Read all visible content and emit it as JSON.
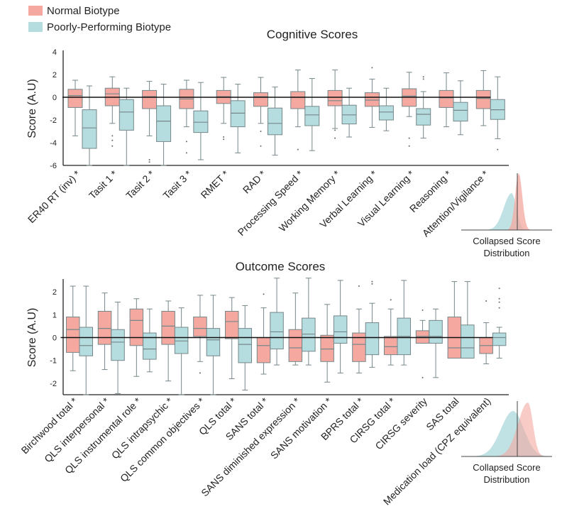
{
  "legend": {
    "items": [
      {
        "label": "Normal Biotype",
        "color": "#F4A8A0"
      },
      {
        "label": "Poorly-Performing Biotype",
        "color": "#B5DDE0"
      }
    ],
    "placement": "top-left"
  },
  "chart_data": [
    {
      "type": "box",
      "title": "Cognitive Scores",
      "ylabel": "Score (A.U)",
      "xlabel": "",
      "ylim": [
        -6,
        4
      ],
      "yticks": [
        4,
        2,
        0,
        -2,
        -4,
        -6
      ],
      "reference_line": 0,
      "grid": false,
      "categories": [
        "ER40 RT (inv) *",
        "Tasit 1 *",
        "Tasit 2 *",
        "Tasit 3 *",
        "RMET *",
        "RAD *",
        "Processing Speed *",
        "Working Memory *",
        "Verbal Learning *",
        "Visual Learning *",
        "Reasoning *",
        "Attention/Vigilance *"
      ],
      "series": [
        {
          "name": "Normal Biotype",
          "boxes": [
            {
              "min": -3.4,
              "q1": -0.9,
              "median": 0.15,
              "q3": 0.7,
              "max": 1.5,
              "outliers": []
            },
            {
              "min": -2.3,
              "q1": -0.75,
              "median": 0.3,
              "q3": 0.8,
              "max": 1.8,
              "outliers": [
                -3.4,
                -3.8,
                -4.3
              ]
            },
            {
              "min": -3.4,
              "q1": -1.0,
              "median": 0.05,
              "q3": 0.6,
              "max": 1.4,
              "outliers": [
                -5.5,
                -5.7
              ]
            },
            {
              "min": -2.6,
              "q1": -1.0,
              "median": -0.15,
              "q3": 0.7,
              "max": 1.5,
              "outliers": [
                -3.9,
                -4.9
              ]
            },
            {
              "min": -2.3,
              "q1": -0.55,
              "median": 0.05,
              "q3": 0.6,
              "max": 1.75,
              "outliers": [
                -3.5,
                -3.7
              ]
            },
            {
              "min": -2.3,
              "q1": -0.8,
              "median": 0.05,
              "q3": 0.4,
              "max": 1.75,
              "outliers": [
                -3.0,
                -4.3
              ]
            },
            {
              "min": -2.6,
              "q1": -1.0,
              "median": 0.0,
              "q3": 0.5,
              "max": 2.4,
              "outliers": [
                -4.6
              ]
            },
            {
              "min": -2.75,
              "q1": -0.75,
              "median": -0.3,
              "q3": 0.6,
              "max": 2.4,
              "outliers": [
                -2.9,
                -3.6
              ]
            },
            {
              "min": -2.65,
              "q1": -0.8,
              "median": -0.25,
              "q3": 0.4,
              "max": 1.6,
              "outliers": [
                2.6
              ]
            },
            {
              "min": -1.7,
              "q1": -0.8,
              "median": 0.1,
              "q3": 0.75,
              "max": 2.2,
              "outliers": [
                -3.6,
                -4.3
              ]
            },
            {
              "min": -2.6,
              "q1": -0.9,
              "median": -0.05,
              "q3": 0.6,
              "max": 2.15,
              "outliers": []
            },
            {
              "min": -2.5,
              "q1": -1.0,
              "median": -0.1,
              "q3": 0.6,
              "max": 2.35,
              "outliers": []
            }
          ]
        },
        {
          "name": "Poorly-Performing Biotype",
          "boxes": [
            {
              "min": -6.0,
              "q1": -4.5,
              "median": -2.7,
              "q3": -1.1,
              "max": 1.0,
              "outliers": []
            },
            {
              "min": -6.0,
              "q1": -2.9,
              "median": -1.3,
              "q3": -0.2,
              "max": 0.8,
              "outliers": []
            },
            {
              "min": -6.0,
              "q1": -3.9,
              "median": -2.1,
              "q3": -0.75,
              "max": 1.15,
              "outliers": []
            },
            {
              "min": -5.5,
              "q1": -3.1,
              "median": -2.2,
              "q3": -1.2,
              "max": 1.3,
              "outliers": []
            },
            {
              "min": -4.9,
              "q1": -2.6,
              "median": -1.4,
              "q3": -0.3,
              "max": 1.15,
              "outliers": []
            },
            {
              "min": -5.1,
              "q1": -3.3,
              "median": -2.3,
              "q3": -0.95,
              "max": 0.9,
              "outliers": []
            },
            {
              "min": -4.7,
              "q1": -2.5,
              "median": -1.55,
              "q3": -0.8,
              "max": 1.65,
              "outliers": []
            },
            {
              "min": -3.5,
              "q1": -2.35,
              "median": -1.55,
              "q3": -0.7,
              "max": 0.8,
              "outliers": []
            },
            {
              "min": -2.95,
              "q1": -2.0,
              "median": -1.3,
              "q3": -0.75,
              "max": 0.8,
              "outliers": []
            },
            {
              "min": -3.6,
              "q1": -2.45,
              "median": -1.5,
              "q3": -1.0,
              "max": 0.5,
              "outliers": [
                1.6,
                1.8
              ]
            },
            {
              "min": -3.3,
              "q1": -2.1,
              "median": -1.15,
              "q3": -0.45,
              "max": 1.45,
              "outliers": []
            },
            {
              "min": -3.65,
              "q1": -1.95,
              "median": -1.1,
              "q3": -0.2,
              "max": 1.8,
              "outliers": [
                -4.6
              ]
            }
          ]
        }
      ],
      "inset": {
        "label": "Collapsed Score Distribution",
        "type": "density"
      }
    },
    {
      "type": "box",
      "title": "Outcome Scores",
      "ylabel": "Score (A.U)",
      "xlabel": "",
      "ylim": [
        -2.5,
        2.5
      ],
      "yticks": [
        2,
        1,
        0,
        -1,
        -2
      ],
      "reference_line": 0,
      "grid": false,
      "categories": [
        "Birchwood total *",
        "QLS interpersonal *",
        "QLS instrumental role *",
        "QLS intrapsychic *",
        "QLS common objectives *",
        "QLS total *",
        "SANS total *",
        "SANS diminished expression *",
        "SANS motivation *",
        "BPRS total *",
        "CIRSG total *",
        "CIRSG severity",
        "SAS total",
        "Medication load (CPZ equivalent)"
      ],
      "series": [
        {
          "name": "Normal Biotype",
          "boxes": [
            {
              "min": -1.45,
              "q1": -0.65,
              "median": 0.35,
              "q3": 0.9,
              "max": 2.25,
              "outliers": []
            },
            {
              "min": -1.4,
              "q1": -0.3,
              "median": 0.4,
              "q3": 1.15,
              "max": 1.95,
              "outliers": []
            },
            {
              "min": -1.7,
              "q1": -0.35,
              "median": 0.75,
              "q3": 1.25,
              "max": 1.7,
              "outliers": []
            },
            {
              "min": -1.9,
              "q1": -0.3,
              "median": 0.5,
              "q3": 1.15,
              "max": 1.6,
              "outliers": []
            },
            {
              "min": -1.05,
              "q1": 0.05,
              "median": 0.4,
              "q3": 0.9,
              "max": 1.85,
              "outliers": [
                -1.55
              ]
            },
            {
              "min": -1.8,
              "q1": -0.05,
              "median": 0.7,
              "q3": 1.15,
              "max": 1.75,
              "outliers": []
            },
            {
              "min": -1.6,
              "q1": -1.1,
              "median": -0.35,
              "q3": 0.0,
              "max": 1.3,
              "outliers": [
                1.9
              ]
            },
            {
              "min": -1.2,
              "q1": -1.05,
              "median": -0.45,
              "q3": 0.35,
              "max": 1.95,
              "outliers": []
            },
            {
              "min": -1.95,
              "q1": -1.05,
              "median": -0.5,
              "q3": 0.1,
              "max": 1.45,
              "outliers": []
            },
            {
              "min": -1.55,
              "q1": -1.05,
              "median": -0.3,
              "q3": 0.2,
              "max": 1.25,
              "outliers": [
                2.25
              ]
            },
            {
              "min": -1.2,
              "q1": -0.75,
              "median": -0.4,
              "q3": 0.05,
              "max": 1.25,
              "outliers": [
                1.65
              ]
            },
            {
              "min": -0.25,
              "q1": -0.25,
              "median": 0.05,
              "q3": 0.3,
              "max": 0.75,
              "outliers": [
                1.2,
                -1.75
              ]
            },
            {
              "min": -0.9,
              "q1": -0.9,
              "median": -0.45,
              "q3": 0.9,
              "max": 2.45,
              "outliers": []
            },
            {
              "min": -1.15,
              "q1": -0.7,
              "median": -0.35,
              "q3": 0.0,
              "max": 0.65,
              "outliers": [
                1.6
              ]
            }
          ]
        },
        {
          "name": "Poorly-Performing Biotype",
          "boxes": [
            {
              "min": -2.5,
              "q1": -0.8,
              "median": -0.35,
              "q3": 0.45,
              "max": 2.25,
              "outliers": []
            },
            {
              "min": -2.45,
              "q1": -1.0,
              "median": -0.2,
              "q3": 0.35,
              "max": 1.55,
              "outliers": []
            },
            {
              "min": -1.5,
              "q1": -0.95,
              "median": -0.5,
              "q3": 0.2,
              "max": 1.25,
              "outliers": []
            },
            {
              "min": -2.5,
              "q1": -0.7,
              "median": -0.15,
              "q3": 0.45,
              "max": 1.3,
              "outliers": []
            },
            {
              "min": -2.5,
              "q1": -0.8,
              "median": -0.1,
              "q3": 0.4,
              "max": 1.85,
              "outliers": []
            },
            {
              "min": -2.3,
              "q1": -1.1,
              "median": -0.3,
              "q3": 0.4,
              "max": 1.4,
              "outliers": []
            },
            {
              "min": -1.2,
              "q1": -0.5,
              "median": 0.25,
              "q3": 1.1,
              "max": 2.6,
              "outliers": []
            },
            {
              "min": -1.2,
              "q1": -0.6,
              "median": 0.15,
              "q3": 0.85,
              "max": 2.6,
              "outliers": []
            },
            {
              "min": -1.55,
              "q1": -0.25,
              "median": 0.25,
              "q3": 0.95,
              "max": 2.5,
              "outliers": []
            },
            {
              "min": -1.3,
              "q1": -0.75,
              "median": 0.0,
              "q3": 0.65,
              "max": 1.5,
              "outliers": [
                2.35,
                2.45
              ]
            },
            {
              "min": -1.2,
              "q1": -0.75,
              "median": 0.05,
              "q3": 0.85,
              "max": 2.5,
              "outliers": []
            },
            {
              "min": -1.75,
              "q1": -0.25,
              "median": 0.05,
              "q3": 0.75,
              "max": 1.25,
              "outliers": []
            },
            {
              "min": -0.9,
              "q1": -0.9,
              "median": -0.45,
              "q3": 0.55,
              "max": 2.45,
              "outliers": []
            },
            {
              "min": -0.9,
              "q1": -0.35,
              "median": 0.0,
              "q3": 0.2,
              "max": 0.45,
              "outliers": [
                1.3,
                1.55,
                1.7,
                2.15
              ]
            }
          ]
        }
      ],
      "inset": {
        "label": "Collapsed Score Distribution",
        "type": "density"
      }
    }
  ]
}
